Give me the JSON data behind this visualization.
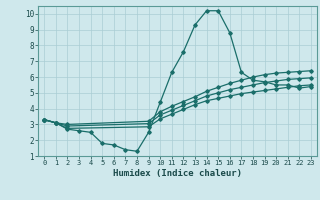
{
  "xlabel": "Humidex (Indice chaleur)",
  "bg_color": "#cfe8ec",
  "grid_color": "#aacdd4",
  "line_color": "#1a6e6a",
  "xlim": [
    -0.5,
    23.5
  ],
  "ylim": [
    1,
    10.5
  ],
  "xticks": [
    0,
    1,
    2,
    3,
    4,
    5,
    6,
    7,
    8,
    9,
    10,
    11,
    12,
    13,
    14,
    15,
    16,
    17,
    18,
    19,
    20,
    21,
    22,
    23
  ],
  "yticks": [
    1,
    2,
    3,
    4,
    5,
    6,
    7,
    8,
    9,
    10
  ],
  "line1_x": [
    0,
    1,
    2,
    3,
    4,
    5,
    6,
    7,
    8,
    9,
    10,
    11,
    12,
    13,
    14,
    15,
    16,
    17,
    18,
    19,
    20,
    21,
    22,
    23
  ],
  "line1_y": [
    3.3,
    3.1,
    2.7,
    2.6,
    2.5,
    1.8,
    1.7,
    1.4,
    1.3,
    2.5,
    4.4,
    6.3,
    7.6,
    9.3,
    10.2,
    10.2,
    8.8,
    6.3,
    5.8,
    5.7,
    5.5,
    5.5,
    5.3,
    5.4
  ],
  "line2_x": [
    0,
    1,
    2,
    9,
    10,
    11,
    12,
    13,
    14,
    15,
    16,
    17,
    18,
    19,
    20,
    21,
    22,
    23
  ],
  "line2_y": [
    3.3,
    3.1,
    3.0,
    3.2,
    3.8,
    4.15,
    4.45,
    4.75,
    5.1,
    5.35,
    5.6,
    5.8,
    6.0,
    6.15,
    6.25,
    6.3,
    6.35,
    6.4
  ],
  "line3_x": [
    0,
    1,
    2,
    9,
    10,
    11,
    12,
    13,
    14,
    15,
    16,
    17,
    18,
    19,
    20,
    21,
    22,
    23
  ],
  "line3_y": [
    3.3,
    3.1,
    2.9,
    3.05,
    3.6,
    3.9,
    4.2,
    4.5,
    4.8,
    5.0,
    5.2,
    5.35,
    5.5,
    5.65,
    5.75,
    5.85,
    5.9,
    5.95
  ],
  "line4_x": [
    0,
    1,
    2,
    9,
    10,
    11,
    12,
    13,
    14,
    15,
    16,
    17,
    18,
    19,
    20,
    21,
    22,
    23
  ],
  "line4_y": [
    3.3,
    3.1,
    2.75,
    2.85,
    3.35,
    3.65,
    3.95,
    4.25,
    4.5,
    4.65,
    4.8,
    4.95,
    5.05,
    5.15,
    5.25,
    5.35,
    5.45,
    5.5
  ]
}
